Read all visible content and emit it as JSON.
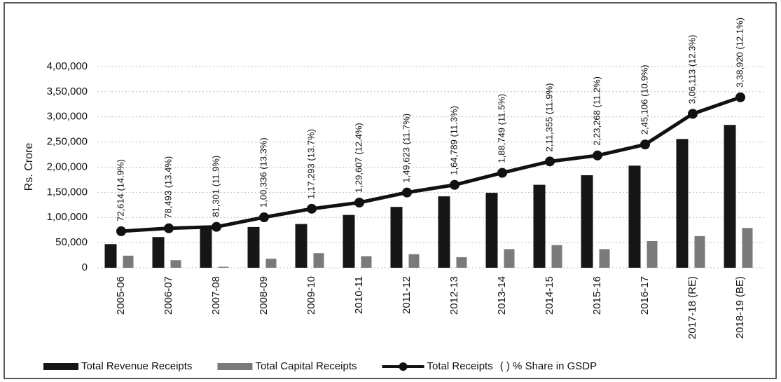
{
  "chart_data": {
    "type": "bar_line",
    "y_label": "Rs. Crore",
    "legend_note": "( ) % Share in GSDP",
    "categories": [
      "2005-06",
      "2006-07",
      "2007-08",
      "2008-09",
      "2009-10",
      "2010-11",
      "2011-12",
      "2012-13",
      "2013-14",
      "2014-15",
      "2015-16",
      "2016-17",
      "2017-18 (RE)",
      "2018-19 (BE)"
    ],
    "series": [
      {
        "name": "Total Revenue Receipts",
        "type": "bar",
        "color": "#161616",
        "values": [
          47000,
          61000,
          78000,
          81000,
          87000,
          105000,
          121000,
          142000,
          149000,
          165000,
          184000,
          203000,
          256000,
          284000
        ]
      },
      {
        "name": "Total Capital Receipts",
        "type": "bar",
        "color": "#7a7a7a",
        "values": [
          24000,
          15000,
          2000,
          18000,
          29000,
          23000,
          27000,
          21000,
          37000,
          45000,
          37000,
          53000,
          63000,
          79000
        ]
      },
      {
        "name": "Total Receipts",
        "type": "line",
        "color": "#111111",
        "values": [
          72614,
          78493,
          81301,
          100336,
          117293,
          129607,
          149623,
          164789,
          188749,
          211355,
          223268,
          245106,
          306113,
          338920
        ],
        "value_labels": [
          "72,614 (14.9%)",
          "78,493 (13.4%)",
          "81,301 (11.9%)",
          "1,00,336 (13.3%)",
          "1,17,293 (13.7%)",
          "1,29,607 (12.4%)",
          "1,49,623 (11.7%)",
          "1,64,789 (11.3%)",
          "1,88,749 (11.5%)",
          "2,11,355 (11.9%)",
          "2,23,268 (11.2%)",
          "2,45,106 (10.9%)",
          "3,06,113 (12.3%)",
          "3,38,920 (12.1%)"
        ]
      }
    ],
    "ylim": [
      0,
      400000
    ],
    "yticks": [
      0,
      {
        "value": 50000,
        "label": "50,000"
      },
      {
        "value": 100000,
        "label": "1,00,000"
      },
      {
        "value": 150000,
        "label": "1,50,000"
      },
      {
        "value": 200000,
        "label": "2,00,000"
      },
      {
        "value": 250000,
        "label": "2,50,000"
      },
      {
        "value": 300000,
        "label": "3,00,000"
      },
      {
        "value": 350000,
        "label": "3,50,000"
      },
      {
        "value": 400000,
        "label": "4,00,000"
      }
    ],
    "grid": true
  }
}
